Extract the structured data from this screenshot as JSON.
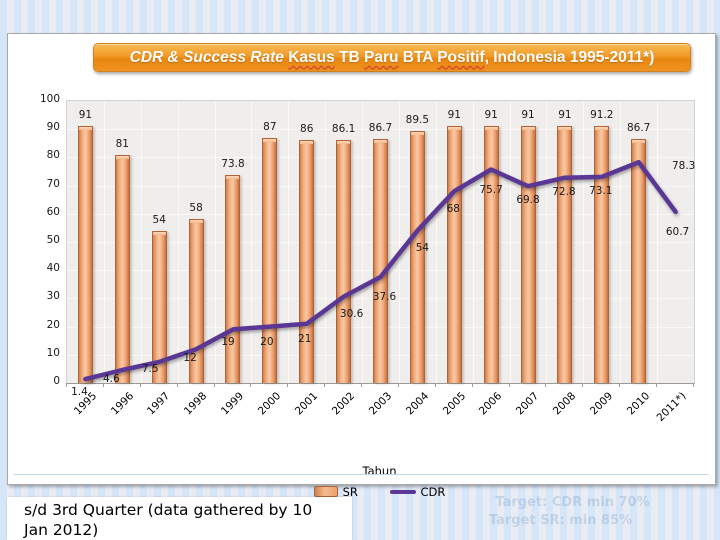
{
  "slide": {
    "title_segments": [
      {
        "text": "CDR & Success Rate ",
        "style": "italic"
      },
      {
        "text": "Kasus",
        "style": "spellcheck"
      },
      {
        "text": " TB ",
        "style": "plain"
      },
      {
        "text": "Paru",
        "style": "spellcheck"
      },
      {
        "text": " BTA ",
        "style": "plain"
      },
      {
        "text": "Positif",
        "style": "spellcheck"
      },
      {
        "text": ", Indonesia 1995-2011*)",
        "style": "plain"
      }
    ],
    "footnote": "s/d 3rd Quarter (data gathered by 10 Jan 2012)",
    "watermark": {
      "line1": "Target: CDR min 70%",
      "line2": "Target SR: min 85%"
    }
  },
  "chart_data": {
    "type": "bar",
    "subtype": "bar-line-combo",
    "categories": [
      "1995",
      "1996",
      "1997",
      "1998",
      "1999",
      "2000",
      "2001",
      "2002",
      "2003",
      "2004",
      "2005",
      "2006",
      "2007",
      "2008",
      "2009",
      "2010",
      "2011*)"
    ],
    "series": [
      {
        "name": "SR",
        "type": "bar",
        "color": "#F2A877",
        "values": [
          91,
          81,
          54,
          58,
          73.8,
          87,
          86,
          86.1,
          86.7,
          89.5,
          91,
          91,
          91,
          91,
          91.2,
          86.7,
          null
        ]
      },
      {
        "name": "CDR",
        "type": "line",
        "color": "#5A3794",
        "values": [
          1.4,
          4.6,
          7.5,
          12,
          19,
          20,
          21,
          30.6,
          37.6,
          54,
          68,
          75.7,
          69.8,
          72.8,
          73.1,
          78.3,
          60.7
        ]
      }
    ],
    "title": "CDR & Success Rate Kasus TB Paru BTA Positif, Indonesia 1995-2011*)",
    "xlabel": "Tahun",
    "ylabel": "",
    "ylim": [
      0,
      100
    ],
    "ytick_step": 10,
    "grid": true,
    "legend_position": "bottom",
    "plot_background": "#F0EEEC"
  }
}
